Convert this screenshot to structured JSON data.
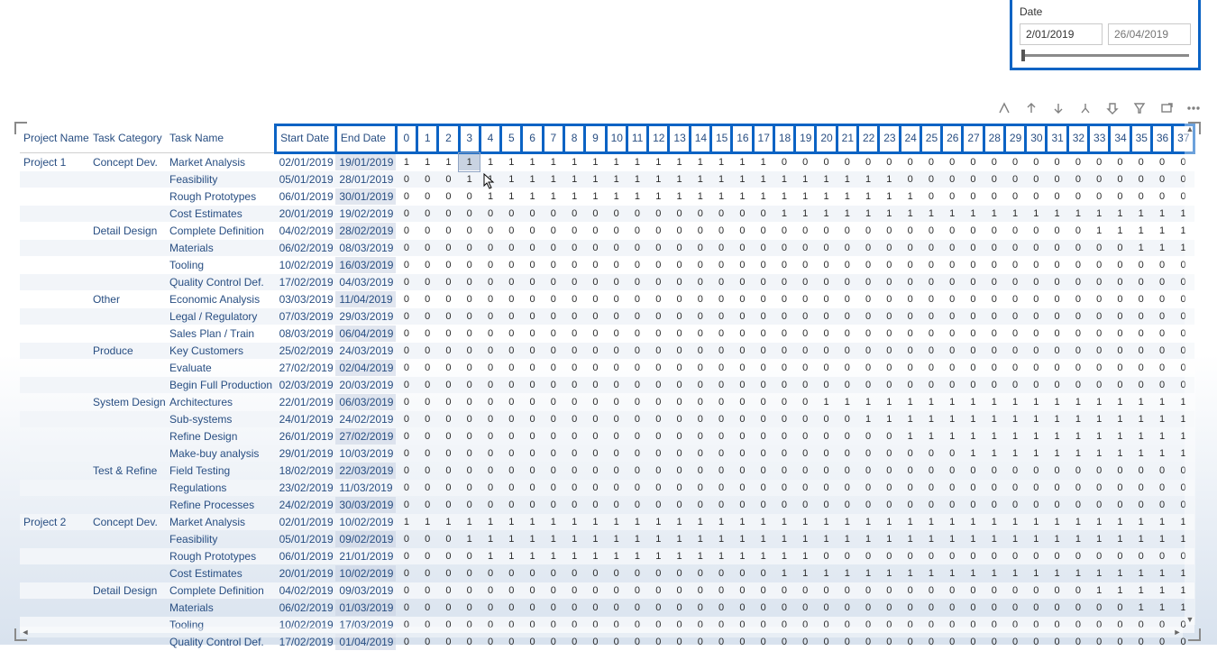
{
  "colors": {
    "accent": "#0b63c4",
    "header_text": "#284e82",
    "stripe": "#f2f5f9",
    "endcol": "#d0dbe8"
  },
  "slicer": {
    "title": "Date",
    "start": "2/01/2019",
    "end_placeholder": "26/04/2019"
  },
  "toolbar_icons": [
    "drill-up-icon",
    "expand-up-icon",
    "expand-down-icon",
    "fork-icon",
    "pin-icon",
    "filter-icon",
    "focus-icon",
    "more-icon"
  ],
  "table": {
    "fixed_cols": [
      "Project Name",
      "Task Category",
      "Task Name",
      "Start Date",
      "End Date"
    ],
    "col_widths": {
      "project": 76,
      "category": 84,
      "task": 120,
      "start": 66,
      "end": 66,
      "num": 23
    },
    "num_cols": [
      0,
      1,
      2,
      3,
      4,
      5,
      6,
      7,
      8,
      9,
      10,
      11,
      12,
      13,
      14,
      15,
      16,
      17,
      18,
      19,
      20,
      21,
      22,
      23,
      24,
      25,
      26,
      27,
      28,
      29,
      30,
      31,
      32,
      33,
      34,
      35,
      36,
      37
    ],
    "rows": [
      {
        "project": "Project 1",
        "category": "Concept Dev.",
        "task": "Market Analysis",
        "start": "02/01/2019",
        "end": "19/01/2019",
        "p": [
          0,
          17
        ]
      },
      {
        "project": "",
        "category": "",
        "task": "Feasibility",
        "start": "05/01/2019",
        "end": "28/01/2019",
        "p": [
          3,
          23
        ]
      },
      {
        "project": "",
        "category": "",
        "task": "Rough Prototypes",
        "start": "06/01/2019",
        "end": "30/01/2019",
        "p": [
          4,
          24
        ]
      },
      {
        "project": "",
        "category": "",
        "task": "Cost Estimates",
        "start": "20/01/2019",
        "end": "19/02/2019",
        "p": [
          18,
          37
        ]
      },
      {
        "project": "",
        "category": "Detail Design",
        "task": "Complete Definition",
        "start": "04/02/2019",
        "end": "28/02/2019",
        "p": [
          33,
          37
        ]
      },
      {
        "project": "",
        "category": "",
        "task": "Materials",
        "start": "06/02/2019",
        "end": "08/03/2019",
        "p": [
          35,
          37
        ]
      },
      {
        "project": "",
        "category": "",
        "task": "Tooling",
        "start": "10/02/2019",
        "end": "16/03/2019",
        "p": [
          99,
          99
        ]
      },
      {
        "project": "",
        "category": "",
        "task": "Quality Control Def.",
        "start": "17/02/2019",
        "end": "04/03/2019",
        "p": [
          99,
          99
        ]
      },
      {
        "project": "",
        "category": "Other",
        "task": "Economic Analysis",
        "start": "03/03/2019",
        "end": "11/04/2019",
        "p": [
          99,
          99
        ]
      },
      {
        "project": "",
        "category": "",
        "task": "Legal / Regulatory",
        "start": "07/03/2019",
        "end": "29/03/2019",
        "p": [
          99,
          99
        ]
      },
      {
        "project": "",
        "category": "",
        "task": "Sales Plan / Train",
        "start": "08/03/2019",
        "end": "06/04/2019",
        "p": [
          99,
          99
        ]
      },
      {
        "project": "",
        "category": "Produce",
        "task": "Key Customers",
        "start": "25/02/2019",
        "end": "24/03/2019",
        "p": [
          99,
          99
        ]
      },
      {
        "project": "",
        "category": "",
        "task": "Evaluate",
        "start": "27/02/2019",
        "end": "02/04/2019",
        "p": [
          99,
          99
        ]
      },
      {
        "project": "",
        "category": "",
        "task": "Begin Full Production",
        "start": "02/03/2019",
        "end": "20/03/2019",
        "p": [
          99,
          99
        ]
      },
      {
        "project": "",
        "category": "System Design",
        "task": "Architectures",
        "start": "22/01/2019",
        "end": "06/03/2019",
        "p": [
          20,
          37
        ]
      },
      {
        "project": "",
        "category": "",
        "task": "Sub-systems",
        "start": "24/01/2019",
        "end": "24/02/2019",
        "p": [
          22,
          37
        ]
      },
      {
        "project": "",
        "category": "",
        "task": "Refine Design",
        "start": "26/01/2019",
        "end": "27/02/2019",
        "p": [
          24,
          37
        ]
      },
      {
        "project": "",
        "category": "",
        "task": "Make-buy analysis",
        "start": "29/01/2019",
        "end": "10/03/2019",
        "p": [
          27,
          37
        ]
      },
      {
        "project": "",
        "category": "Test & Refine",
        "task": "Field Testing",
        "start": "18/02/2019",
        "end": "22/03/2019",
        "p": [
          99,
          99
        ]
      },
      {
        "project": "",
        "category": "",
        "task": "Regulations",
        "start": "23/02/2019",
        "end": "11/03/2019",
        "p": [
          99,
          99
        ]
      },
      {
        "project": "",
        "category": "",
        "task": "Refine Processes",
        "start": "24/02/2019",
        "end": "30/03/2019",
        "p": [
          99,
          99
        ]
      },
      {
        "project": "Project 2",
        "category": "Concept Dev.",
        "task": "Market Analysis",
        "start": "02/01/2019",
        "end": "10/02/2019",
        "p": [
          0,
          37
        ]
      },
      {
        "project": "",
        "category": "",
        "task": "Feasibility",
        "start": "05/01/2019",
        "end": "09/02/2019",
        "p": [
          3,
          37
        ]
      },
      {
        "project": "",
        "category": "",
        "task": "Rough Prototypes",
        "start": "06/01/2019",
        "end": "21/01/2019",
        "p": [
          4,
          19
        ]
      },
      {
        "project": "",
        "category": "",
        "task": "Cost Estimates",
        "start": "20/01/2019",
        "end": "10/02/2019",
        "p": [
          18,
          37
        ]
      },
      {
        "project": "",
        "category": "Detail Design",
        "task": "Complete Definition",
        "start": "04/02/2019",
        "end": "09/03/2019",
        "p": [
          33,
          37
        ]
      },
      {
        "project": "",
        "category": "",
        "task": "Materials",
        "start": "06/02/2019",
        "end": "01/03/2019",
        "p": [
          35,
          37
        ]
      },
      {
        "project": "",
        "category": "",
        "task": "Tooling",
        "start": "10/02/2019",
        "end": "17/03/2019",
        "p": [
          99,
          99
        ]
      },
      {
        "project": "",
        "category": "",
        "task": "Quality Control Def.",
        "start": "17/02/2019",
        "end": "01/04/2019",
        "p": [
          99,
          99
        ]
      }
    ],
    "selected_cell": {
      "row": 0,
      "num_col": 3
    },
    "cursor_at": {
      "row": 1,
      "num_col": 4
    }
  }
}
